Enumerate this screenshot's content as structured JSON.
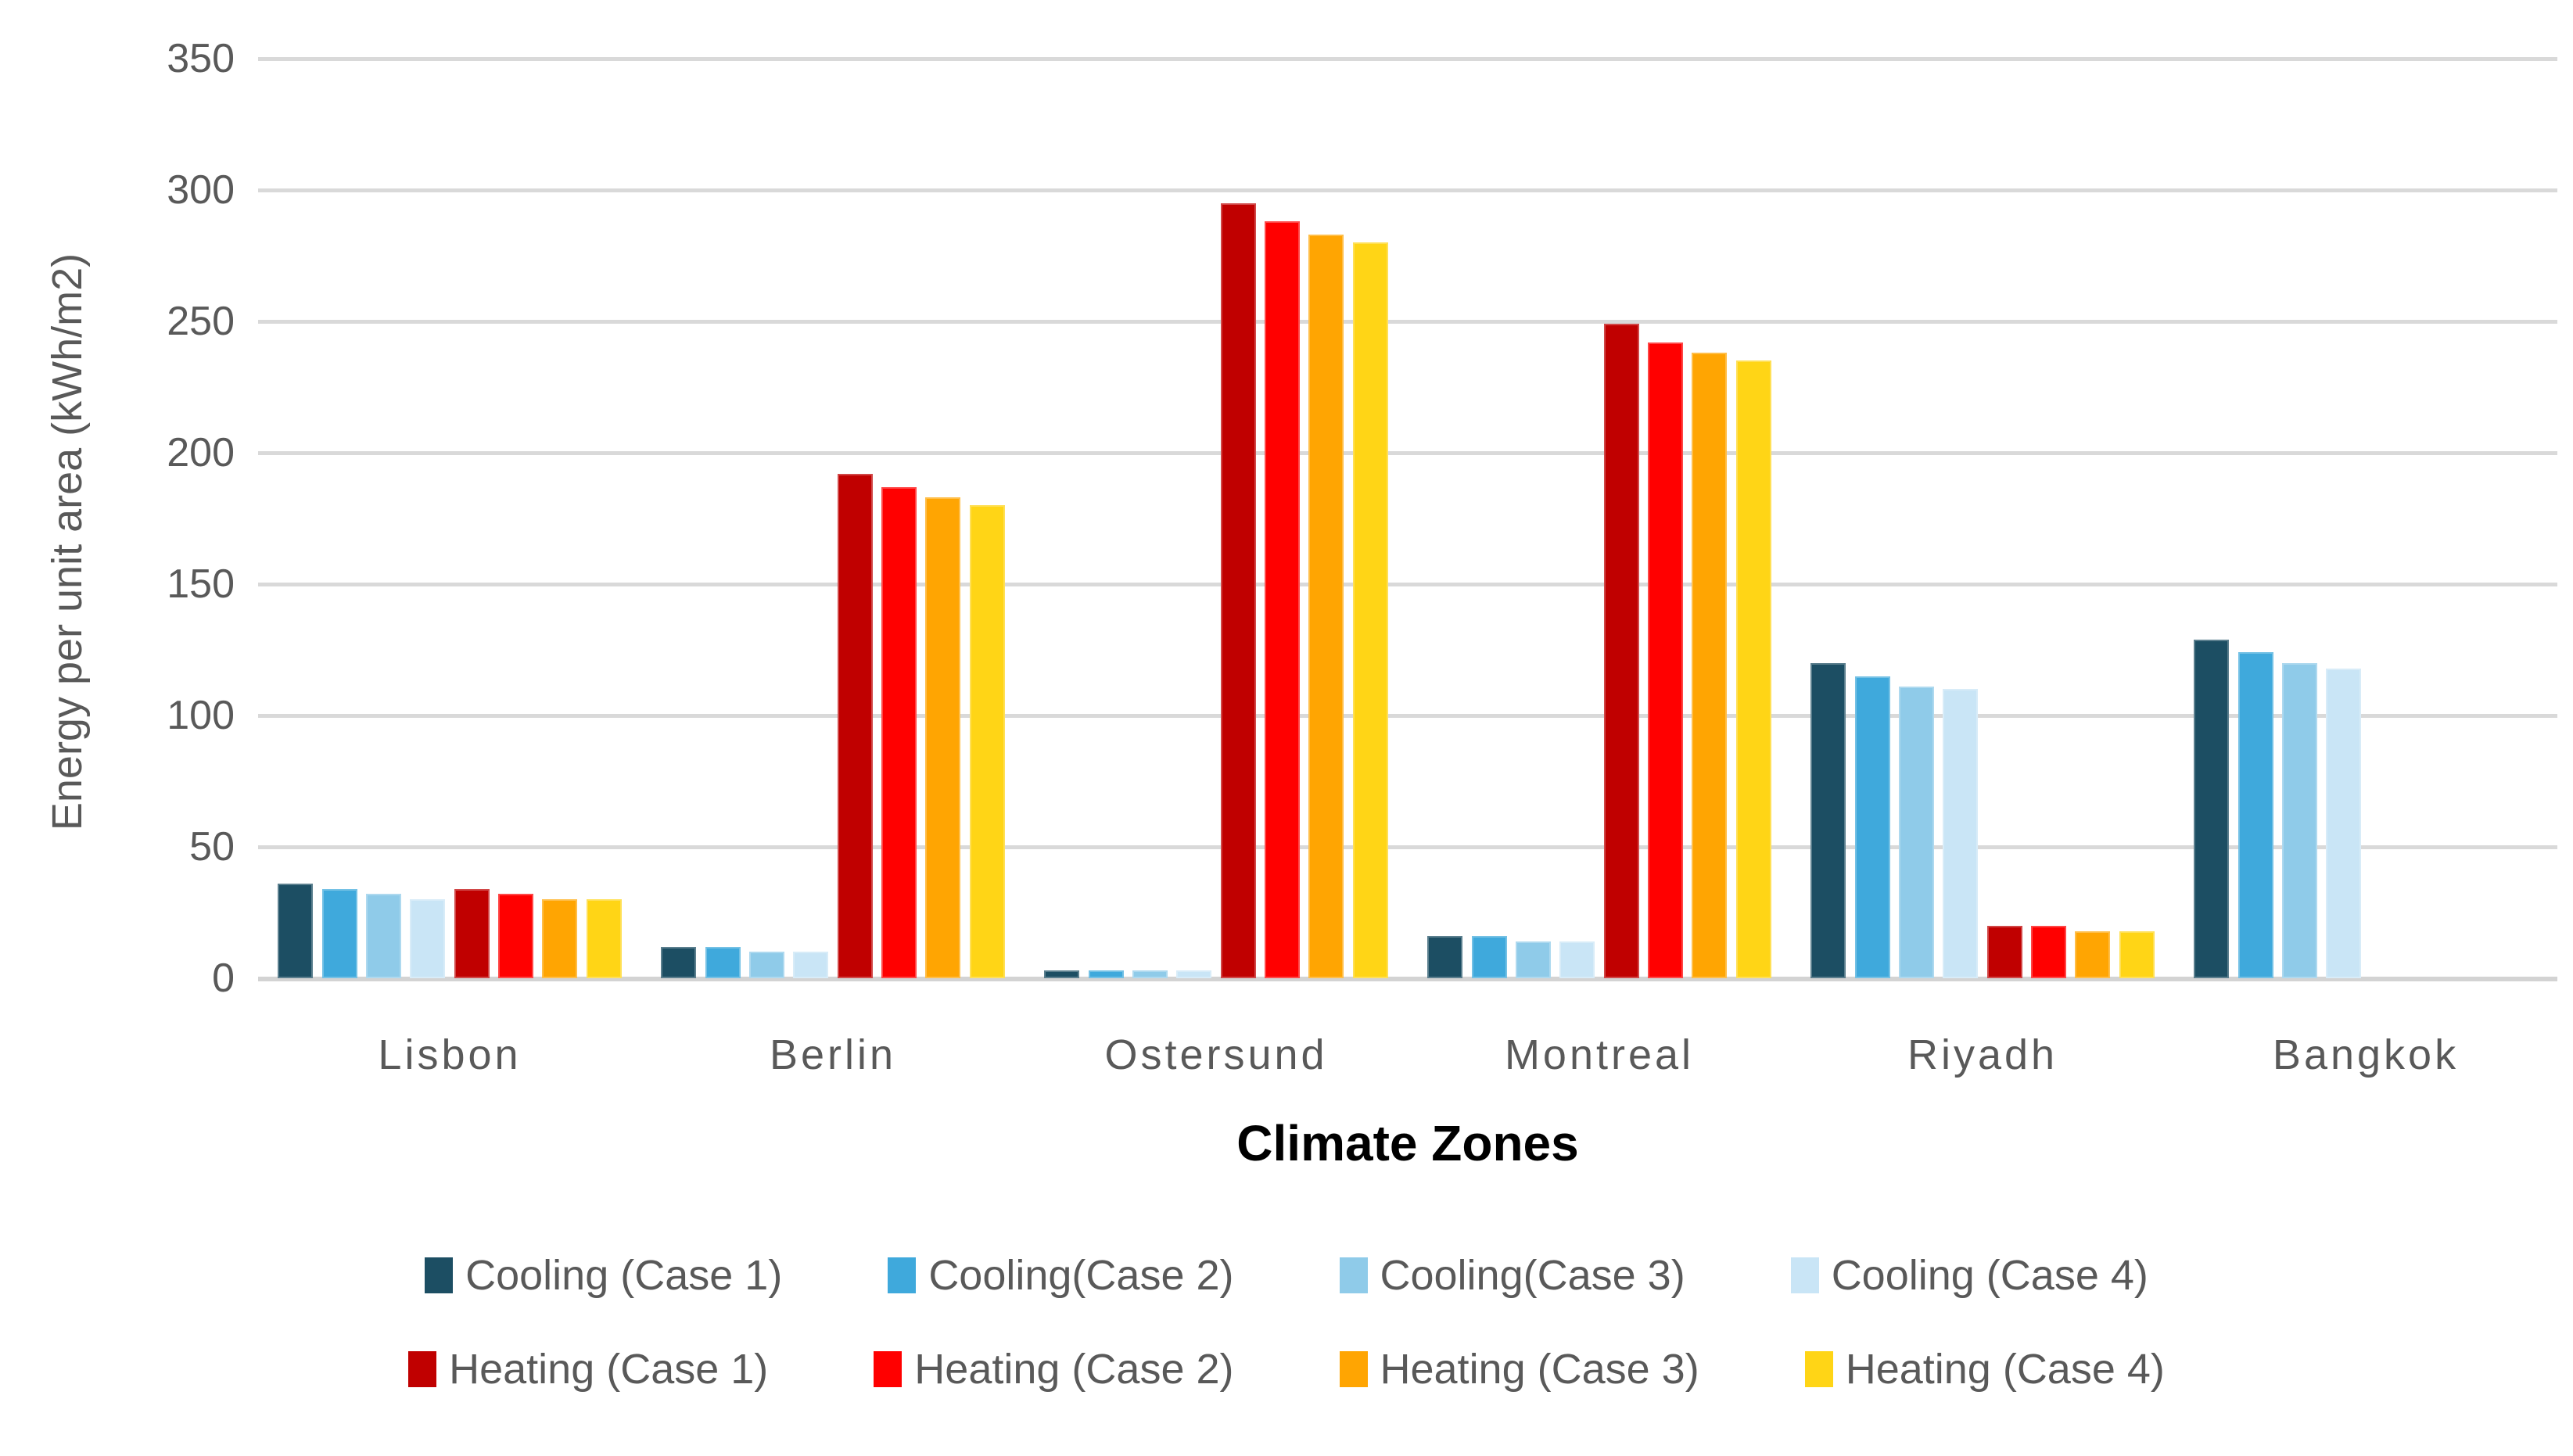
{
  "chart_data": {
    "type": "bar",
    "title": "",
    "xlabel": "Climate Zones",
    "ylabel": "Energy per unit area (kWh/m2)",
    "categories": [
      "Lisbon",
      "Berlin",
      "Ostersund",
      "Montreal",
      "Riyadh",
      "Bangkok"
    ],
    "series": [
      {
        "name": "Cooling (Case 1)",
        "color": "#1C4E63",
        "values": [
          36,
          12,
          3,
          16,
          120,
          129
        ]
      },
      {
        "name": "Cooling(Case 2)",
        "color": "#3FA9DC",
        "values": [
          34,
          12,
          3,
          16,
          115,
          124
        ]
      },
      {
        "name": "Cooling(Case 3)",
        "color": "#8FCBE9",
        "values": [
          32,
          10,
          3,
          14,
          111,
          120
        ]
      },
      {
        "name": "Cooling (Case 4)",
        "color": "#C9E5F6",
        "values": [
          30,
          10,
          3,
          14,
          110,
          118
        ]
      },
      {
        "name": "Heating (Case 1)",
        "color": "#C00000",
        "values": [
          34,
          192,
          295,
          249,
          20,
          0
        ]
      },
      {
        "name": "Heating (Case 2)",
        "color": "#FF0000",
        "values": [
          32,
          187,
          288,
          242,
          20,
          0
        ]
      },
      {
        "name": "Heating (Case 3)",
        "color": "#FFA502",
        "values": [
          30,
          183,
          283,
          238,
          18,
          0
        ]
      },
      {
        "name": "Heating (Case 4)",
        "color": "#FFD516",
        "values": [
          30,
          180,
          280,
          235,
          18,
          0
        ]
      }
    ],
    "ylim": [
      0,
      350
    ],
    "y_ticks": [
      0,
      50,
      100,
      150,
      200,
      250,
      300,
      350
    ],
    "grid": true,
    "legend_position": "bottom",
    "legend_rows": [
      [
        0,
        1,
        2,
        3
      ],
      [
        4,
        5,
        6,
        7
      ]
    ],
    "colors": {
      "gridline": "#d9d9d9",
      "axis_text": "#595959",
      "axis_title": "#000000"
    }
  }
}
